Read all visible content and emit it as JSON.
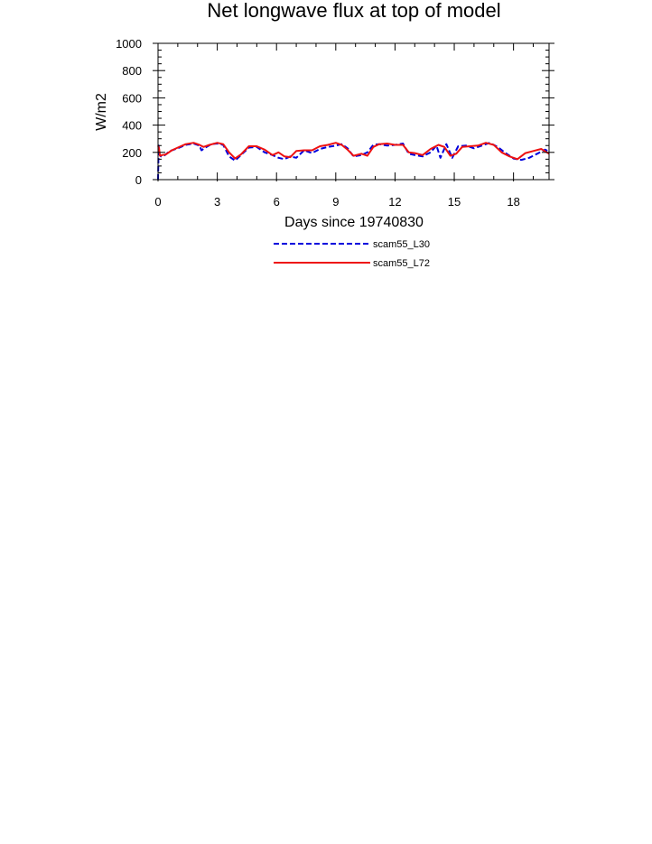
{
  "chart_data": {
    "type": "line",
    "title": "Net longwave flux at top of model",
    "xlabel": "Days since 19740830",
    "ylabel": "W/m2",
    "xlim": [
      0,
      19.8
    ],
    "ylim": [
      0,
      1000
    ],
    "x_ticks": [
      0,
      3,
      6,
      9,
      12,
      15,
      18
    ],
    "y_ticks": [
      0,
      200,
      400,
      600,
      800,
      1000
    ],
    "grid": false,
    "legend_position": "bottom-center",
    "series": [
      {
        "name": "scam55_L30",
        "color": "#0000dd",
        "style": "dashed",
        "x": [
          0,
          0.03,
          0.08,
          0.15,
          0.3,
          0.6,
          1.0,
          1.4,
          1.8,
          2.1,
          2.2,
          2.4,
          2.7,
          3.0,
          3.3,
          3.6,
          3.9,
          4.2,
          4.6,
          5.0,
          5.4,
          5.8,
          6.1,
          6.4,
          6.7,
          7.0,
          7.4,
          7.8,
          8.2,
          8.6,
          9.0,
          9.3,
          9.6,
          9.9,
          10.3,
          10.6,
          10.9,
          11.2,
          11.6,
          12.0,
          12.4,
          12.7,
          13.0,
          13.4,
          13.8,
          14.1,
          14.3,
          14.6,
          14.9,
          15.2,
          15.6,
          16.0,
          16.4,
          16.8,
          17.2,
          17.6,
          18.0,
          18.4,
          18.8,
          19.2,
          19.6,
          19.8
        ],
        "y": [
          0,
          250,
          180,
          170,
          175,
          210,
          230,
          255,
          265,
          250,
          215,
          235,
          260,
          265,
          255,
          170,
          140,
          180,
          235,
          240,
          200,
          180,
          160,
          150,
          170,
          160,
          215,
          195,
          225,
          240,
          250,
          260,
          230,
          170,
          180,
          200,
          255,
          260,
          250,
          255,
          265,
          190,
          180,
          170,
          200,
          250,
          160,
          260,
          160,
          245,
          250,
          230,
          250,
          270,
          240,
          195,
          155,
          145,
          160,
          190,
          220,
          205
        ]
      },
      {
        "name": "scam55_L72",
        "color": "#ee1111",
        "style": "solid",
        "x": [
          0,
          0.05,
          0.1,
          0.2,
          0.4,
          0.7,
          1.0,
          1.4,
          1.8,
          2.1,
          2.3,
          2.6,
          3.0,
          3.3,
          3.6,
          3.9,
          4.2,
          4.6,
          5.0,
          5.4,
          5.8,
          6.1,
          6.4,
          6.7,
          7.0,
          7.4,
          7.8,
          8.2,
          8.6,
          9.0,
          9.3,
          9.6,
          9.9,
          10.3,
          10.6,
          10.9,
          11.2,
          11.6,
          12.0,
          12.4,
          12.7,
          13.0,
          13.4,
          13.8,
          14.2,
          14.5,
          14.8,
          15.1,
          15.4,
          15.8,
          16.2,
          16.6,
          17.0,
          17.4,
          17.8,
          18.2,
          18.6,
          19.0,
          19.4,
          19.8
        ],
        "y": [
          250,
          230,
          175,
          180,
          185,
          215,
          235,
          260,
          270,
          255,
          240,
          255,
          270,
          260,
          200,
          155,
          185,
          245,
          245,
          220,
          180,
          200,
          170,
          165,
          210,
          215,
          215,
          245,
          255,
          270,
          255,
          220,
          175,
          190,
          175,
          240,
          260,
          265,
          255,
          255,
          200,
          195,
          180,
          225,
          255,
          240,
          175,
          190,
          240,
          245,
          250,
          270,
          255,
          200,
          170,
          150,
          195,
          210,
          225,
          190
        ]
      }
    ]
  }
}
